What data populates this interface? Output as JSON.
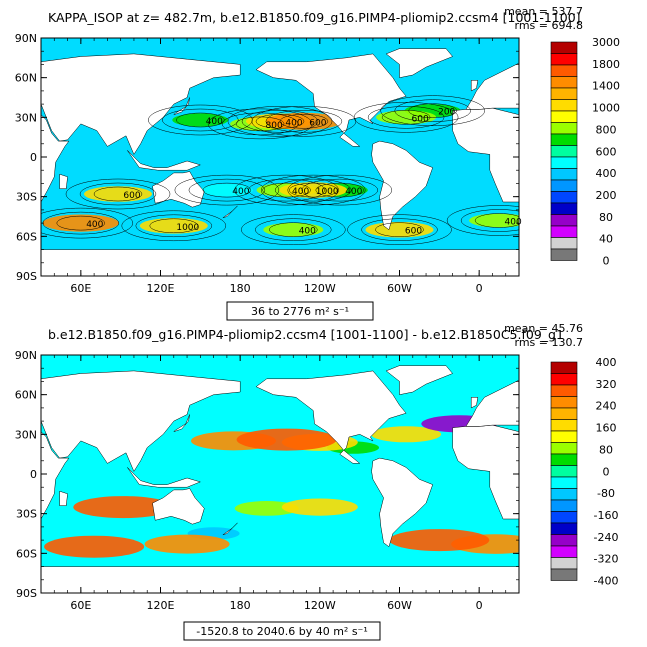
{
  "panels": [
    {
      "title": "KAPPA_ISOP at z= 482.7m, b.e12.B1850.f09_g16.PIMP4-pliomip2.ccsm4 [1001-1100]",
      "stats": [
        "mean = 537.7",
        "rms = 694.8"
      ],
      "range_label": "36 to 2776 m² s⁻¹",
      "colorbar_labels": [
        "3000",
        "1800",
        "1400",
        "1000",
        "800",
        "600",
        "400",
        "200",
        "80",
        "40",
        "0"
      ],
      "colorbar_colors": [
        "#b40000",
        "#ff0000",
        "#ff5a00",
        "#ff8c00",
        "#ffb400",
        "#ffdc00",
        "#ffff00",
        "#9bff00",
        "#00dc00",
        "#00ffa0",
        "#00ffff",
        "#00c8ff",
        "#0096ff",
        "#0046ff",
        "#0000c8",
        "#9600c8",
        "#d200ff",
        "#d2d2d2",
        "#787878"
      ],
      "contour_labels": [
        "400",
        "600",
        "800",
        "400",
        "600",
        "200",
        "600",
        "1000",
        "400",
        "400",
        "400",
        "400",
        "1000",
        "400",
        "600",
        "400"
      ]
    },
    {
      "title": "b.e12.B1850.f09_g16.PIMP4-pliomip2.ccsm4 [1001-1100] - b.e12.B1850C5.f09_g1",
      "stats": [
        "mean = 45.76",
        "rms = 130.7"
      ],
      "range_label": "-1520.8 to 2040.6 by 40 m² s⁻¹",
      "colorbar_labels": [
        "400",
        "320",
        "240",
        "160",
        "80",
        "0",
        "-80",
        "-160",
        "-240",
        "-320",
        "-400"
      ],
      "colorbar_colors": [
        "#b40000",
        "#ff0000",
        "#ff5a00",
        "#ff8c00",
        "#ffb400",
        "#ffdc00",
        "#ffff00",
        "#9bff00",
        "#00dc00",
        "#00ffa0",
        "#00ffff",
        "#00c8ff",
        "#0096ff",
        "#0046ff",
        "#0000c8",
        "#9600c8",
        "#d200ff",
        "#d2d2d2",
        "#787878"
      ]
    }
  ],
  "chart_data": [
    {
      "type": "heatmap",
      "title": "KAPPA_ISOP at z= 482.7m, b.e12.B1850.f09_g16.PIMP4-pliomip2.ccsm4 [1001-1100]",
      "variable": "KAPPA_ISOP",
      "depth_m": 482.7,
      "x_ticks": [
        "60E",
        "120E",
        "180",
        "120W",
        "60W",
        "0"
      ],
      "y_ticks": [
        "90N",
        "60N",
        "30N",
        "0",
        "30S",
        "60S",
        "90S"
      ],
      "xlim": [
        30,
        390
      ],
      "ylim": [
        -90,
        90
      ],
      "mean": 537.7,
      "rms": 694.8,
      "min": 36,
      "max": 2776,
      "units": "m² s⁻¹",
      "levels": [
        0,
        40,
        80,
        200,
        400,
        600,
        800,
        1000,
        1400,
        1800,
        3000
      ],
      "regions": [
        {
          "lon": 210,
          "lat": 27,
          "value": 1400
        },
        {
          "lon": 228,
          "lat": 27,
          "value": 1800
        },
        {
          "lon": 195,
          "lat": 25,
          "value": 1000
        },
        {
          "lon": 150,
          "lat": 28,
          "value": 800
        },
        {
          "lon": 305,
          "lat": 30,
          "value": 1000
        },
        {
          "lon": 325,
          "lat": 35,
          "value": 800
        },
        {
          "lon": 88,
          "lat": -28,
          "value": 1400
        },
        {
          "lon": 235,
          "lat": -25,
          "value": 1400
        },
        {
          "lon": 215,
          "lat": -25,
          "value": 1000
        },
        {
          "lon": 255,
          "lat": -25,
          "value": 800
        },
        {
          "lon": 170,
          "lat": -25,
          "value": 600
        },
        {
          "lon": 60,
          "lat": -50,
          "value": 1800
        },
        {
          "lon": 130,
          "lat": -52,
          "value": 1400
        },
        {
          "lon": 220,
          "lat": -55,
          "value": 1000
        },
        {
          "lon": 300,
          "lat": -55,
          "value": 1400
        },
        {
          "lon": 375,
          "lat": -48,
          "value": 1000
        }
      ]
    },
    {
      "type": "heatmap",
      "title": "b.e12.B1850.f09_g16.PIMP4-pliomip2.ccsm4 [1001-1100] - b.e12.B1850C5.f09_g1",
      "x_ticks": [
        "60E",
        "120E",
        "180",
        "120W",
        "60W",
        "0"
      ],
      "y_ticks": [
        "90N",
        "60N",
        "30N",
        "0",
        "30S",
        "60S",
        "90S"
      ],
      "xlim": [
        30,
        390
      ],
      "ylim": [
        -90,
        90
      ],
      "mean": 45.76,
      "rms": 130.7,
      "min": -1520.8,
      "max": 2040.6,
      "interval": 40,
      "units": "m² s⁻¹",
      "levels": [
        -400,
        -320,
        -240,
        -160,
        -80,
        0,
        80,
        160,
        240,
        320,
        400
      ],
      "regions": [
        {
          "lon": 175,
          "lat": 25,
          "value": 300
        },
        {
          "lon": 215,
          "lat": 26,
          "value": 400
        },
        {
          "lon": 240,
          "lat": 24,
          "value": 240
        },
        {
          "lon": 305,
          "lat": 30,
          "value": 200
        },
        {
          "lon": 92,
          "lat": -25,
          "value": 400
        },
        {
          "lon": 240,
          "lat": -25,
          "value": 240
        },
        {
          "lon": 200,
          "lat": -26,
          "value": 160
        },
        {
          "lon": 70,
          "lat": -55,
          "value": 400
        },
        {
          "lon": 140,
          "lat": -53,
          "value": 300
        },
        {
          "lon": 330,
          "lat": -50,
          "value": 400
        },
        {
          "lon": 372,
          "lat": -53,
          "value": 320
        },
        {
          "lon": 265,
          "lat": 20,
          "value": 80
        },
        {
          "lon": 345,
          "lat": 38,
          "value": -240
        },
        {
          "lon": 160,
          "lat": -45,
          "value": -80
        }
      ]
    }
  ]
}
